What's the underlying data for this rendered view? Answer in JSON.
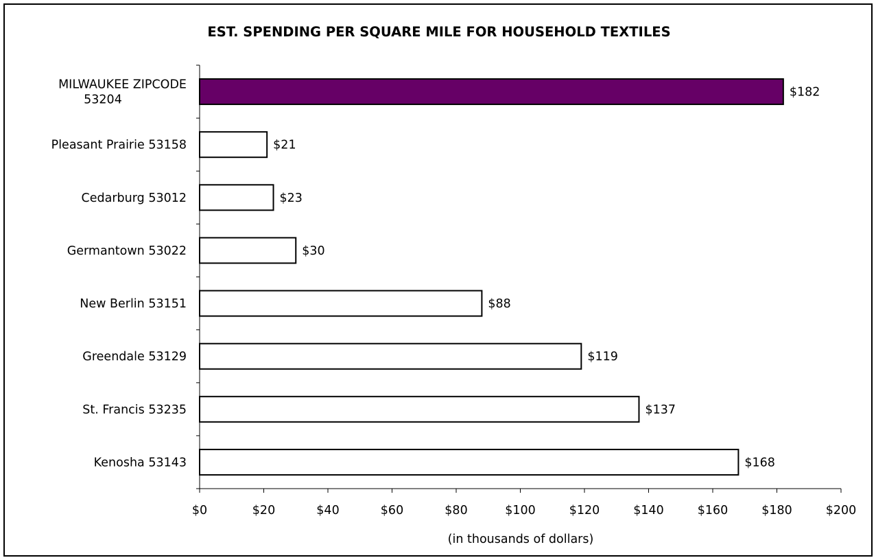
{
  "chart_data": {
    "type": "bar",
    "orientation": "horizontal",
    "title": "EST. SPENDING PER SQUARE MILE FOR HOUSEHOLD TEXTILES",
    "xlabel": "(in thousands of dollars)",
    "ylabel": "",
    "categories": [
      [
        "MILWAUKEE ZIPCODE",
        "53204"
      ],
      [
        "Pleasant Prairie 53158"
      ],
      [
        "Cedarburg 53012"
      ],
      [
        "Germantown 53022"
      ],
      [
        "New Berlin 53151"
      ],
      [
        "Greendale 53129"
      ],
      [
        "St. Francis 53235"
      ],
      [
        "Kenosha 53143"
      ]
    ],
    "values": [
      182,
      21,
      23,
      30,
      88,
      119,
      137,
      168
    ],
    "data_labels": [
      "$182",
      "$21",
      "$23",
      "$30",
      "$88",
      "$119",
      "$137",
      "$168"
    ],
    "highlight_index": 0,
    "colors": {
      "highlight": "#660066",
      "default": "#ffffff",
      "outline": "#000000"
    },
    "xlim": [
      0,
      200
    ],
    "xticks": [
      0,
      20,
      40,
      60,
      80,
      100,
      120,
      140,
      160,
      180,
      200
    ],
    "xtick_labels": [
      "$0",
      "$20",
      "$40",
      "$60",
      "$80",
      "$100",
      "$120",
      "$140",
      "$160",
      "$180",
      "$200"
    ],
    "grid": false,
    "legend": "none"
  }
}
